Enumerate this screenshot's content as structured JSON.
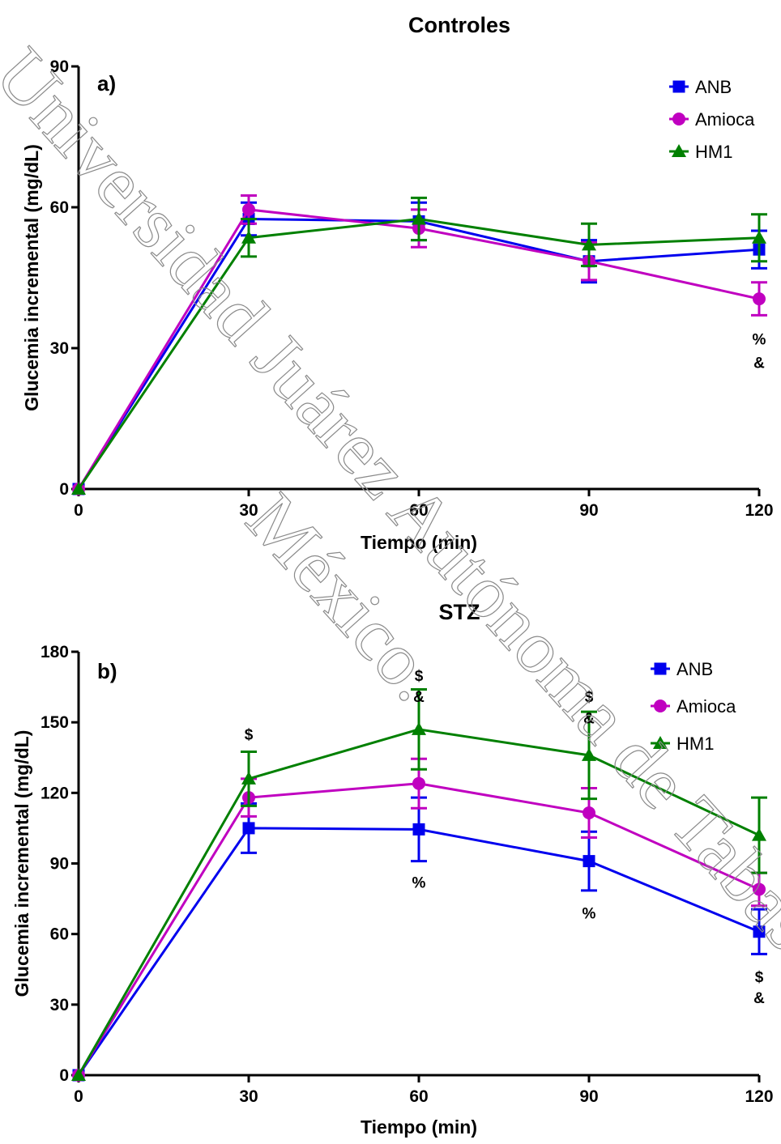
{
  "watermark": {
    "line1": "Universidad Juárez Autónoma de Tabasco",
    "line2": "México."
  },
  "chart_data": [
    {
      "type": "line",
      "title": "Controles",
      "panel_label": "a)",
      "xlabel": "Tiempo (min)",
      "ylabel": "Glucemia incremental (mg/dL)",
      "x": [
        0,
        30,
        60,
        90,
        120
      ],
      "xticks": [
        0,
        30,
        60,
        90,
        120
      ],
      "yticks": [
        0,
        30,
        60,
        90
      ],
      "xlim": [
        0,
        120
      ],
      "ylim": [
        0,
        90
      ],
      "legend": "top-right",
      "series": [
        {
          "name": "ANB",
          "color": "#0000ee",
          "marker": "square",
          "values": [
            0,
            57.5,
            57.0,
            48.5,
            51.0
          ],
          "err": [
            0,
            3.5,
            4.0,
            4.5,
            4.0
          ]
        },
        {
          "name": "Amioca",
          "color": "#c000c0",
          "marker": "circle",
          "values": [
            0,
            59.5,
            55.5,
            48.5,
            40.5
          ],
          "err": [
            0,
            3.0,
            4.0,
            4.0,
            3.5
          ]
        },
        {
          "name": "HM1",
          "color": "#008000",
          "marker": "triangle",
          "values": [
            0,
            53.5,
            57.5,
            52.0,
            53.5
          ],
          "err": [
            0,
            4.0,
            4.5,
            4.5,
            5.0
          ]
        }
      ],
      "annotations": [
        {
          "x": 120,
          "y": 32,
          "text": "%"
        },
        {
          "x": 120,
          "y": 27,
          "text": "&"
        }
      ]
    },
    {
      "type": "line",
      "title": "STZ",
      "panel_label": "b)",
      "xlabel": "Tiempo (min)",
      "ylabel": "Glucemia incremental (mg/dL)",
      "x": [
        0,
        30,
        60,
        90,
        120
      ],
      "xticks": [
        0,
        30,
        60,
        90,
        120
      ],
      "yticks": [
        0,
        30,
        60,
        90,
        120,
        150,
        180
      ],
      "xlim": [
        0,
        120
      ],
      "ylim": [
        0,
        180
      ],
      "legend": "top-right",
      "series": [
        {
          "name": "ANB",
          "color": "#0000ee",
          "marker": "square",
          "values": [
            0,
            105,
            104.5,
            91,
            61
          ],
          "err": [
            0,
            10.5,
            13.5,
            12.5,
            9.5
          ]
        },
        {
          "name": "Amioca",
          "color": "#c000c0",
          "marker": "circle",
          "values": [
            0,
            118,
            124,
            111.5,
            79
          ],
          "err": [
            0,
            8.0,
            10.5,
            10.5,
            7.0
          ]
        },
        {
          "name": "HM1",
          "color": "#008000",
          "marker": "triangle",
          "values": [
            0,
            126,
            147,
            136,
            102
          ],
          "err": [
            0,
            11.5,
            17.0,
            18.5,
            16.0
          ]
        }
      ],
      "annotations": [
        {
          "x": 30,
          "y": 145,
          "text": "$"
        },
        {
          "x": 60,
          "y": 170,
          "text": "$"
        },
        {
          "x": 60,
          "y": 161,
          "text": "&"
        },
        {
          "x": 60,
          "y": 82,
          "text": "%"
        },
        {
          "x": 90,
          "y": 161,
          "text": "$"
        },
        {
          "x": 90,
          "y": 152,
          "text": "&"
        },
        {
          "x": 90,
          "y": 69,
          "text": "%"
        },
        {
          "x": 120,
          "y": 42,
          "text": "$"
        },
        {
          "x": 120,
          "y": 33,
          "text": "&"
        }
      ]
    }
  ]
}
